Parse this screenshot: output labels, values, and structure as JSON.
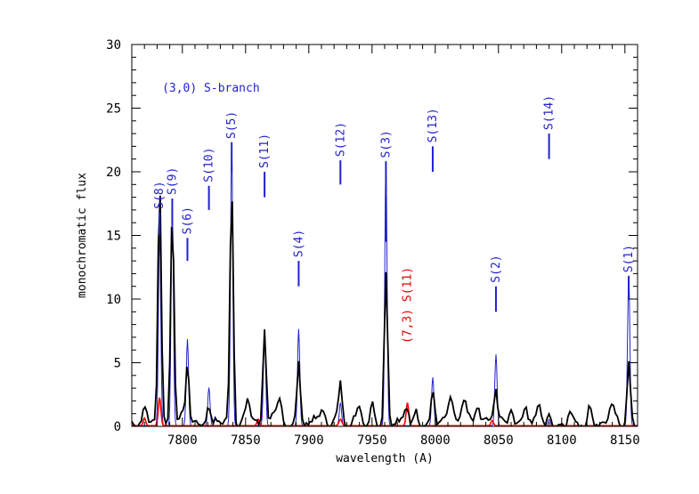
{
  "chart_data": {
    "type": "line",
    "title": "",
    "xlabel": "wavelength (A)",
    "ylabel": "monochromatic flux",
    "xlim": [
      7760,
      8160
    ],
    "ylim": [
      0,
      30
    ],
    "xticks": [
      7800,
      7850,
      7900,
      7950,
      8000,
      8050,
      8100,
      8150
    ],
    "yticks": [
      0,
      5,
      10,
      15,
      20,
      25,
      30
    ],
    "grid": false,
    "colors": {
      "observed": "#000000",
      "model_blue": "#2222cc",
      "model_red": "#ff0000",
      "annot_blue": "#2222cc",
      "annot_red": "#e00000"
    },
    "branch_label": "(3,0) S-branch",
    "red_label": "(7,3) S(11)",
    "red_marker": {
      "x": 7978,
      "y": 1.8
    },
    "lines": [
      {
        "label": "S(8)",
        "x": 7782,
        "marker": [
          15.0,
          16.8
        ],
        "peak_blue": 15.3,
        "peak_black": 19.2,
        "peak_red": 2.2
      },
      {
        "label": "S(9)",
        "x": 7792,
        "marker": [
          16.0,
          17.9
        ],
        "peak_blue": 17.5,
        "peak_black": 16.7
      },
      {
        "label": "S(6)",
        "x": 7804,
        "marker": [
          13.0,
          14.8
        ],
        "peak_blue": 6.8,
        "peak_black": 4.5
      },
      {
        "label": "S(10)",
        "x": 7821,
        "marker": [
          17.0,
          18.9
        ],
        "peak_blue": 3.0,
        "peak_black": 1.5
      },
      {
        "label": "S(5)",
        "x": 7839,
        "marker": [
          20.0,
          22.3
        ],
        "peak_blue": 22.3,
        "peak_black": 19.1
      },
      {
        "label": "S(11)",
        "x": 7865,
        "marker": [
          18.0,
          20.0
        ],
        "peak_blue": 7.6,
        "peak_black": 7.5
      },
      {
        "label": "S(4)",
        "x": 7892,
        "marker": [
          11.0,
          13.0
        ],
        "peak_blue": 7.6,
        "peak_black": 4.5
      },
      {
        "label": "S(12)",
        "x": 7925,
        "marker": [
          19.0,
          20.9
        ],
        "peak_blue": 1.8,
        "peak_black": 1.5
      },
      {
        "label": "S(3)",
        "x": 7961,
        "marker": [
          14.5,
          20.8
        ],
        "peak_blue": 20.8,
        "peak_black": 12.3
      },
      {
        "label": "S(13)",
        "x": 7998,
        "marker": [
          20.0,
          22.0
        ],
        "peak_blue": 3.8,
        "peak_black": 2.2
      },
      {
        "label": "S(2)",
        "x": 8048,
        "marker": [
          9.0,
          11.0
        ],
        "peak_blue": 5.6,
        "peak_black": 2.8
      },
      {
        "label": "S(14)",
        "x": 8090,
        "marker": [
          21.0,
          23.0
        ],
        "peak_blue": 0.5,
        "peak_black": 0.4
      },
      {
        "label": "S(1)",
        "x": 8153,
        "marker": [
          10.0,
          11.8
        ],
        "peak_blue": 11.8,
        "peak_black": 4.3
      }
    ]
  }
}
